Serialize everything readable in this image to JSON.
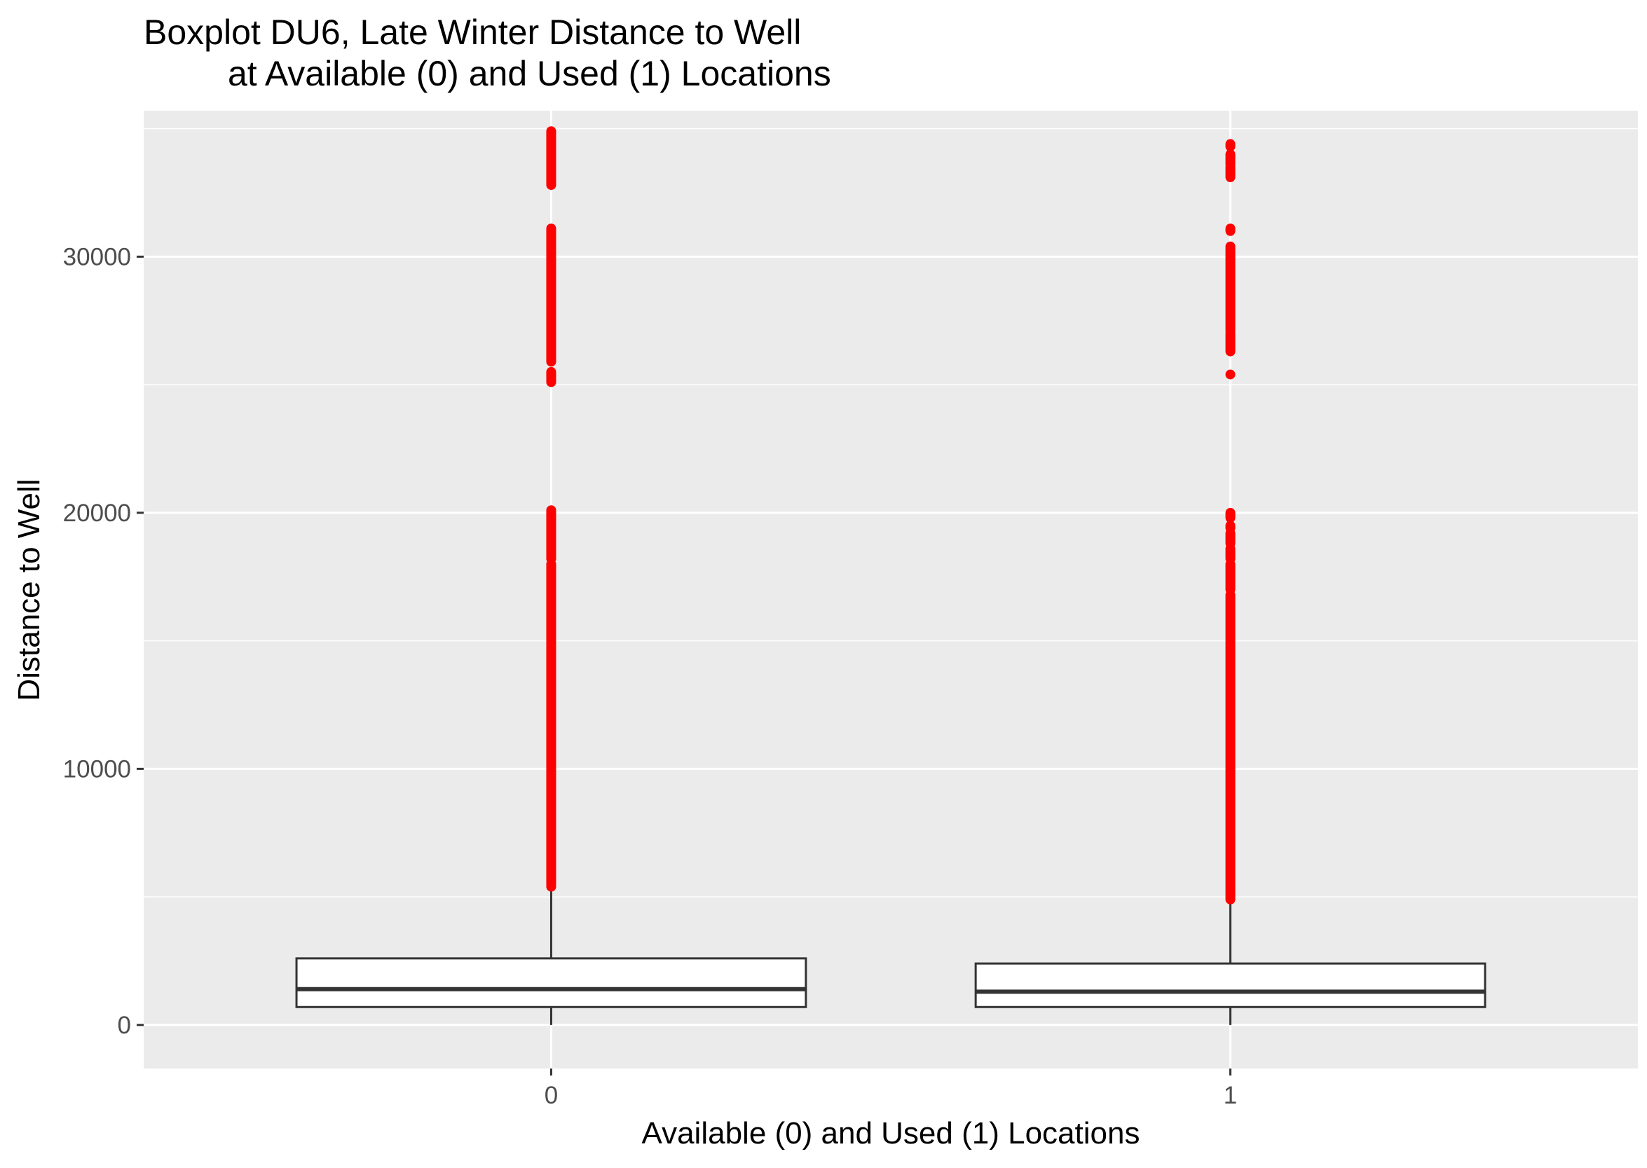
{
  "chart_data": {
    "type": "boxplot",
    "title": [
      "Boxplot DU6, Late Winter Distance to Well",
      "at Available (0) and Used (1) Locations"
    ],
    "xlabel": "Available (0) and Used (1) Locations",
    "ylabel": "Distance to Well",
    "categories": [
      "0",
      "1"
    ],
    "ylim": [
      -1700,
      35700
    ],
    "y_ticks": [
      0,
      10000,
      20000,
      30000
    ],
    "y_tick_labels": [
      "0",
      "10000",
      "20000",
      "30000"
    ],
    "grid": true,
    "outlier_color": "#ff0000",
    "panel_background": "#ebebeb",
    "boxes": [
      {
        "category": "0",
        "whisker_low": 0,
        "q1": 700,
        "median": 1400,
        "q3": 2600,
        "whisker_high": 5500,
        "outlier_segments": [
          [
            5400,
            18000
          ],
          [
            18200,
            20100
          ],
          [
            25100,
            25500
          ],
          [
            25900,
            31100
          ],
          [
            32800,
            34900
          ]
        ]
      },
      {
        "category": "1",
        "whisker_low": 0,
        "q1": 700,
        "median": 1300,
        "q3": 2400,
        "whisker_high": 4900,
        "outlier_segments": [
          [
            4900,
            16800
          ],
          [
            17000,
            18000
          ],
          [
            18200,
            18600
          ],
          [
            18800,
            19200
          ],
          [
            19400,
            19500
          ],
          [
            19800,
            20000
          ],
          [
            25400,
            25400
          ],
          [
            26300,
            27000
          ],
          [
            27100,
            30400
          ],
          [
            31000,
            31100
          ],
          [
            33100,
            33500
          ],
          [
            33600,
            34000
          ],
          [
            34300,
            34400
          ]
        ]
      }
    ]
  }
}
